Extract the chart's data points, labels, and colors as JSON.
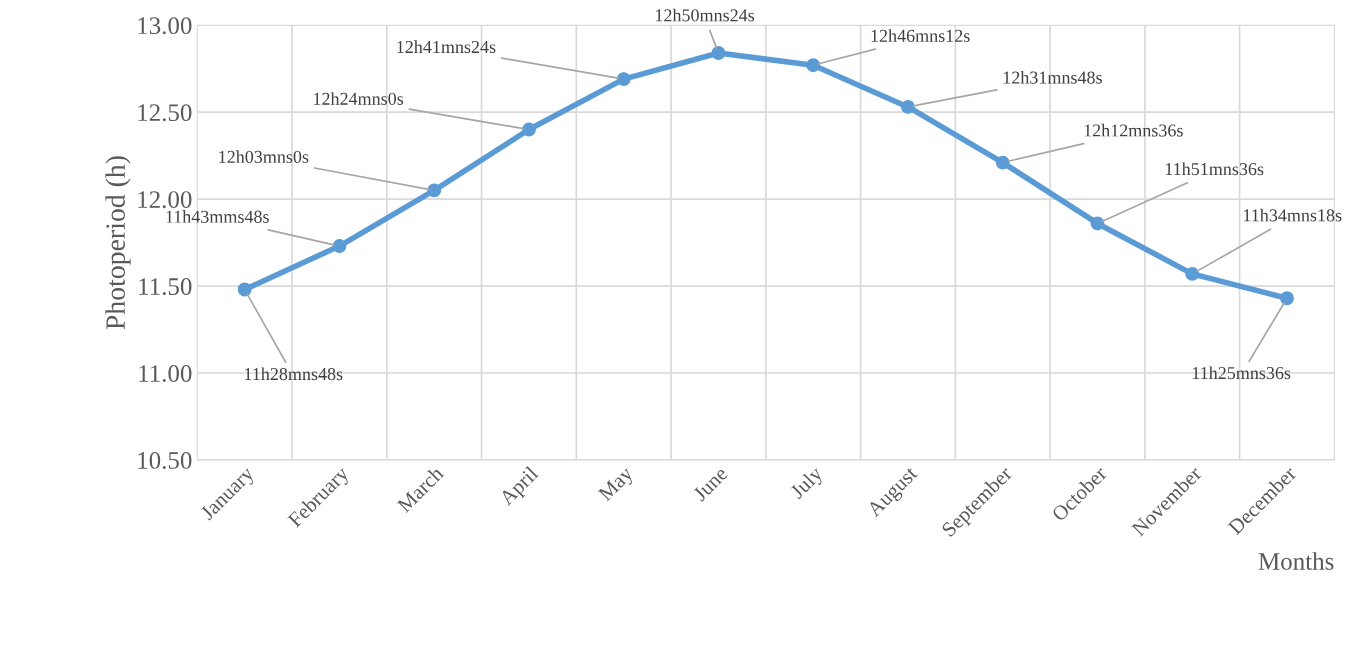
{
  "chart_data": {
    "type": "line",
    "xlabel": "Months",
    "ylabel": "Photoperiod (h)",
    "categories": [
      "January",
      "February",
      "March",
      "April",
      "May",
      "June",
      "July",
      "August",
      "September",
      "October",
      "November",
      "December"
    ],
    "series": [
      {
        "color": "#5b9bd5",
        "values": [
          11.48,
          11.73,
          12.05,
          12.4,
          12.69,
          12.84,
          12.77,
          12.53,
          12.21,
          11.86,
          11.57,
          11.43
        ]
      }
    ],
    "value_labels": [
      "11h28mns48s",
      "11h43mms48s",
      "12h03mns0s",
      "12h24mns0s",
      "12h41mns24s",
      "12h50mns24s",
      "12h46mns12s",
      "12h31mns48s",
      "12h12mns36s",
      "11h51mns36s",
      "11h34mns18s",
      "11h25mns36s"
    ],
    "ylim": [
      10.5,
      13.0
    ],
    "yticks": [
      {
        "value": 10.5,
        "label": "10.50"
      },
      {
        "value": 11.0,
        "label": "11.00"
      },
      {
        "value": 11.5,
        "label": "11.50"
      },
      {
        "value": 12.0,
        "label": "12.00"
      },
      {
        "value": 12.5,
        "label": "12.50"
      },
      {
        "value": 13.0,
        "label": "13.00"
      }
    ],
    "grid": true,
    "marker": "circle",
    "line_style": "solid",
    "legend": false
  }
}
